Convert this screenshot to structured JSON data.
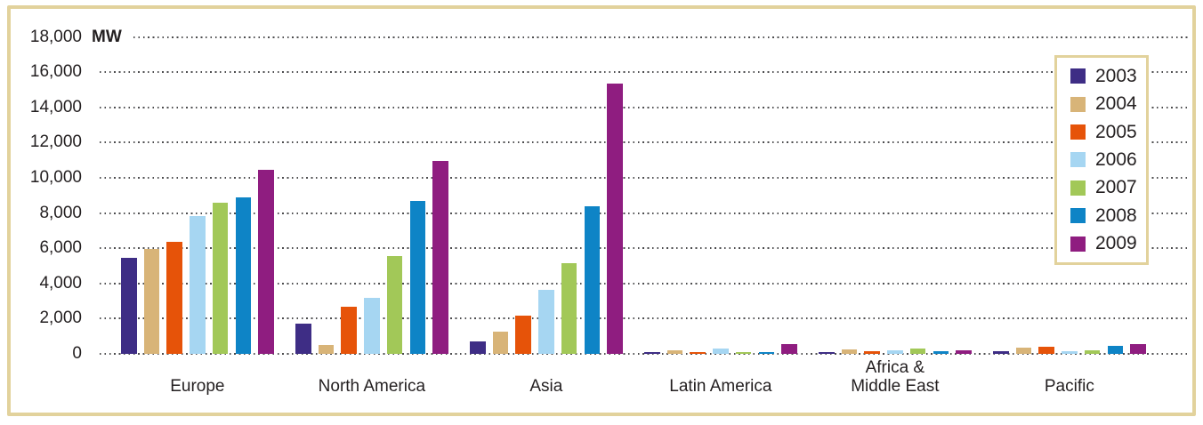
{
  "chart_data": {
    "type": "bar",
    "title": "",
    "unit_label": "MW",
    "xlabel": "",
    "ylabel": "MW",
    "ylim": [
      0,
      18000
    ],
    "ytick_step": 2000,
    "grid": "dotted-horizontal",
    "legend_position": "top-right",
    "categories": [
      "Europe",
      "North America",
      "Asia",
      "Latin America",
      "Africa &\nMiddle East",
      "Pacific"
    ],
    "series": [
      {
        "name": "2003",
        "color": "#3e2d85",
        "values": [
          5450,
          1700,
          720,
          120,
          120,
          130
        ]
      },
      {
        "name": "2004",
        "color": "#d8b478",
        "values": [
          5950,
          490,
          1280,
          200,
          270,
          350
        ]
      },
      {
        "name": "2005",
        "color": "#e65309",
        "values": [
          6350,
          2680,
          2170,
          100,
          160,
          390
        ]
      },
      {
        "name": "2006",
        "color": "#a6d6f2",
        "values": [
          7850,
          3180,
          3640,
          300,
          220,
          150
        ]
      },
      {
        "name": "2007",
        "color": "#a2c858",
        "values": [
          8600,
          5570,
          5150,
          120,
          280,
          220
        ]
      },
      {
        "name": "2008",
        "color": "#0e84c6",
        "values": [
          8900,
          8690,
          8400,
          100,
          140,
          470
        ]
      },
      {
        "name": "2009",
        "color": "#8f1d80",
        "values": [
          10450,
          10960,
          15370,
          550,
          210,
          550
        ]
      }
    ],
    "theme": {
      "frame_border": "#e2d29c",
      "legend_border": "#e2d29c",
      "grid_dot": "#4d4d4f",
      "text": "#231f20",
      "background": "#ffffff"
    }
  }
}
